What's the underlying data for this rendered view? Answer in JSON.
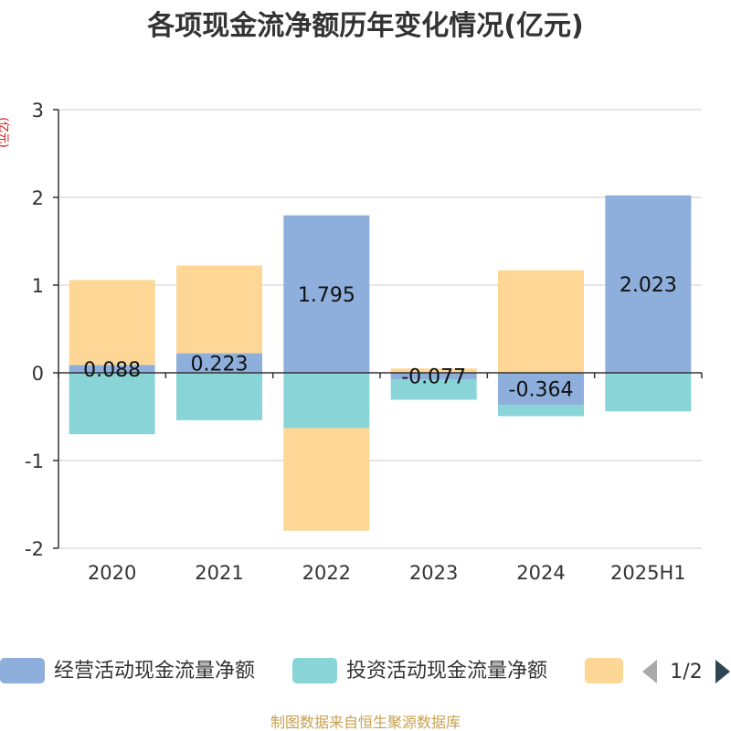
{
  "chart_data": {
    "type": "bar",
    "stacked": true,
    "title": "各项现金流净额历年变化情况(亿元)",
    "ylabel": "(亿元)",
    "categories": [
      "2020",
      "2021",
      "2022",
      "2023",
      "2024",
      "2025H1"
    ],
    "ylim": [
      -2,
      3
    ],
    "yticks": [
      "3",
      "2",
      "1",
      "0",
      "-1",
      "-2"
    ],
    "grid": true,
    "series": [
      {
        "name": "经营活动现金流量净额",
        "color": "#8eaedb",
        "values": [
          0.088,
          0.223,
          1.795,
          -0.077,
          -0.364,
          2.023
        ],
        "labels": [
          "0.088",
          "0.223",
          "1.795",
          "-0.077",
          "-0.364",
          "2.023"
        ]
      },
      {
        "name": "投资活动现金流量净额",
        "color": "#88d4d6",
        "values": [
          -0.7,
          -0.54,
          -0.63,
          -0.23,
          -0.13,
          -0.44
        ]
      },
      {
        "color": "#fed797",
        "values": [
          0.97,
          1.0,
          -1.17,
          0.05,
          1.17,
          0.0
        ]
      }
    ],
    "legend": {
      "position": "bottom",
      "page": "1/2"
    },
    "source": "制图数据来自恒生聚源数据库"
  }
}
